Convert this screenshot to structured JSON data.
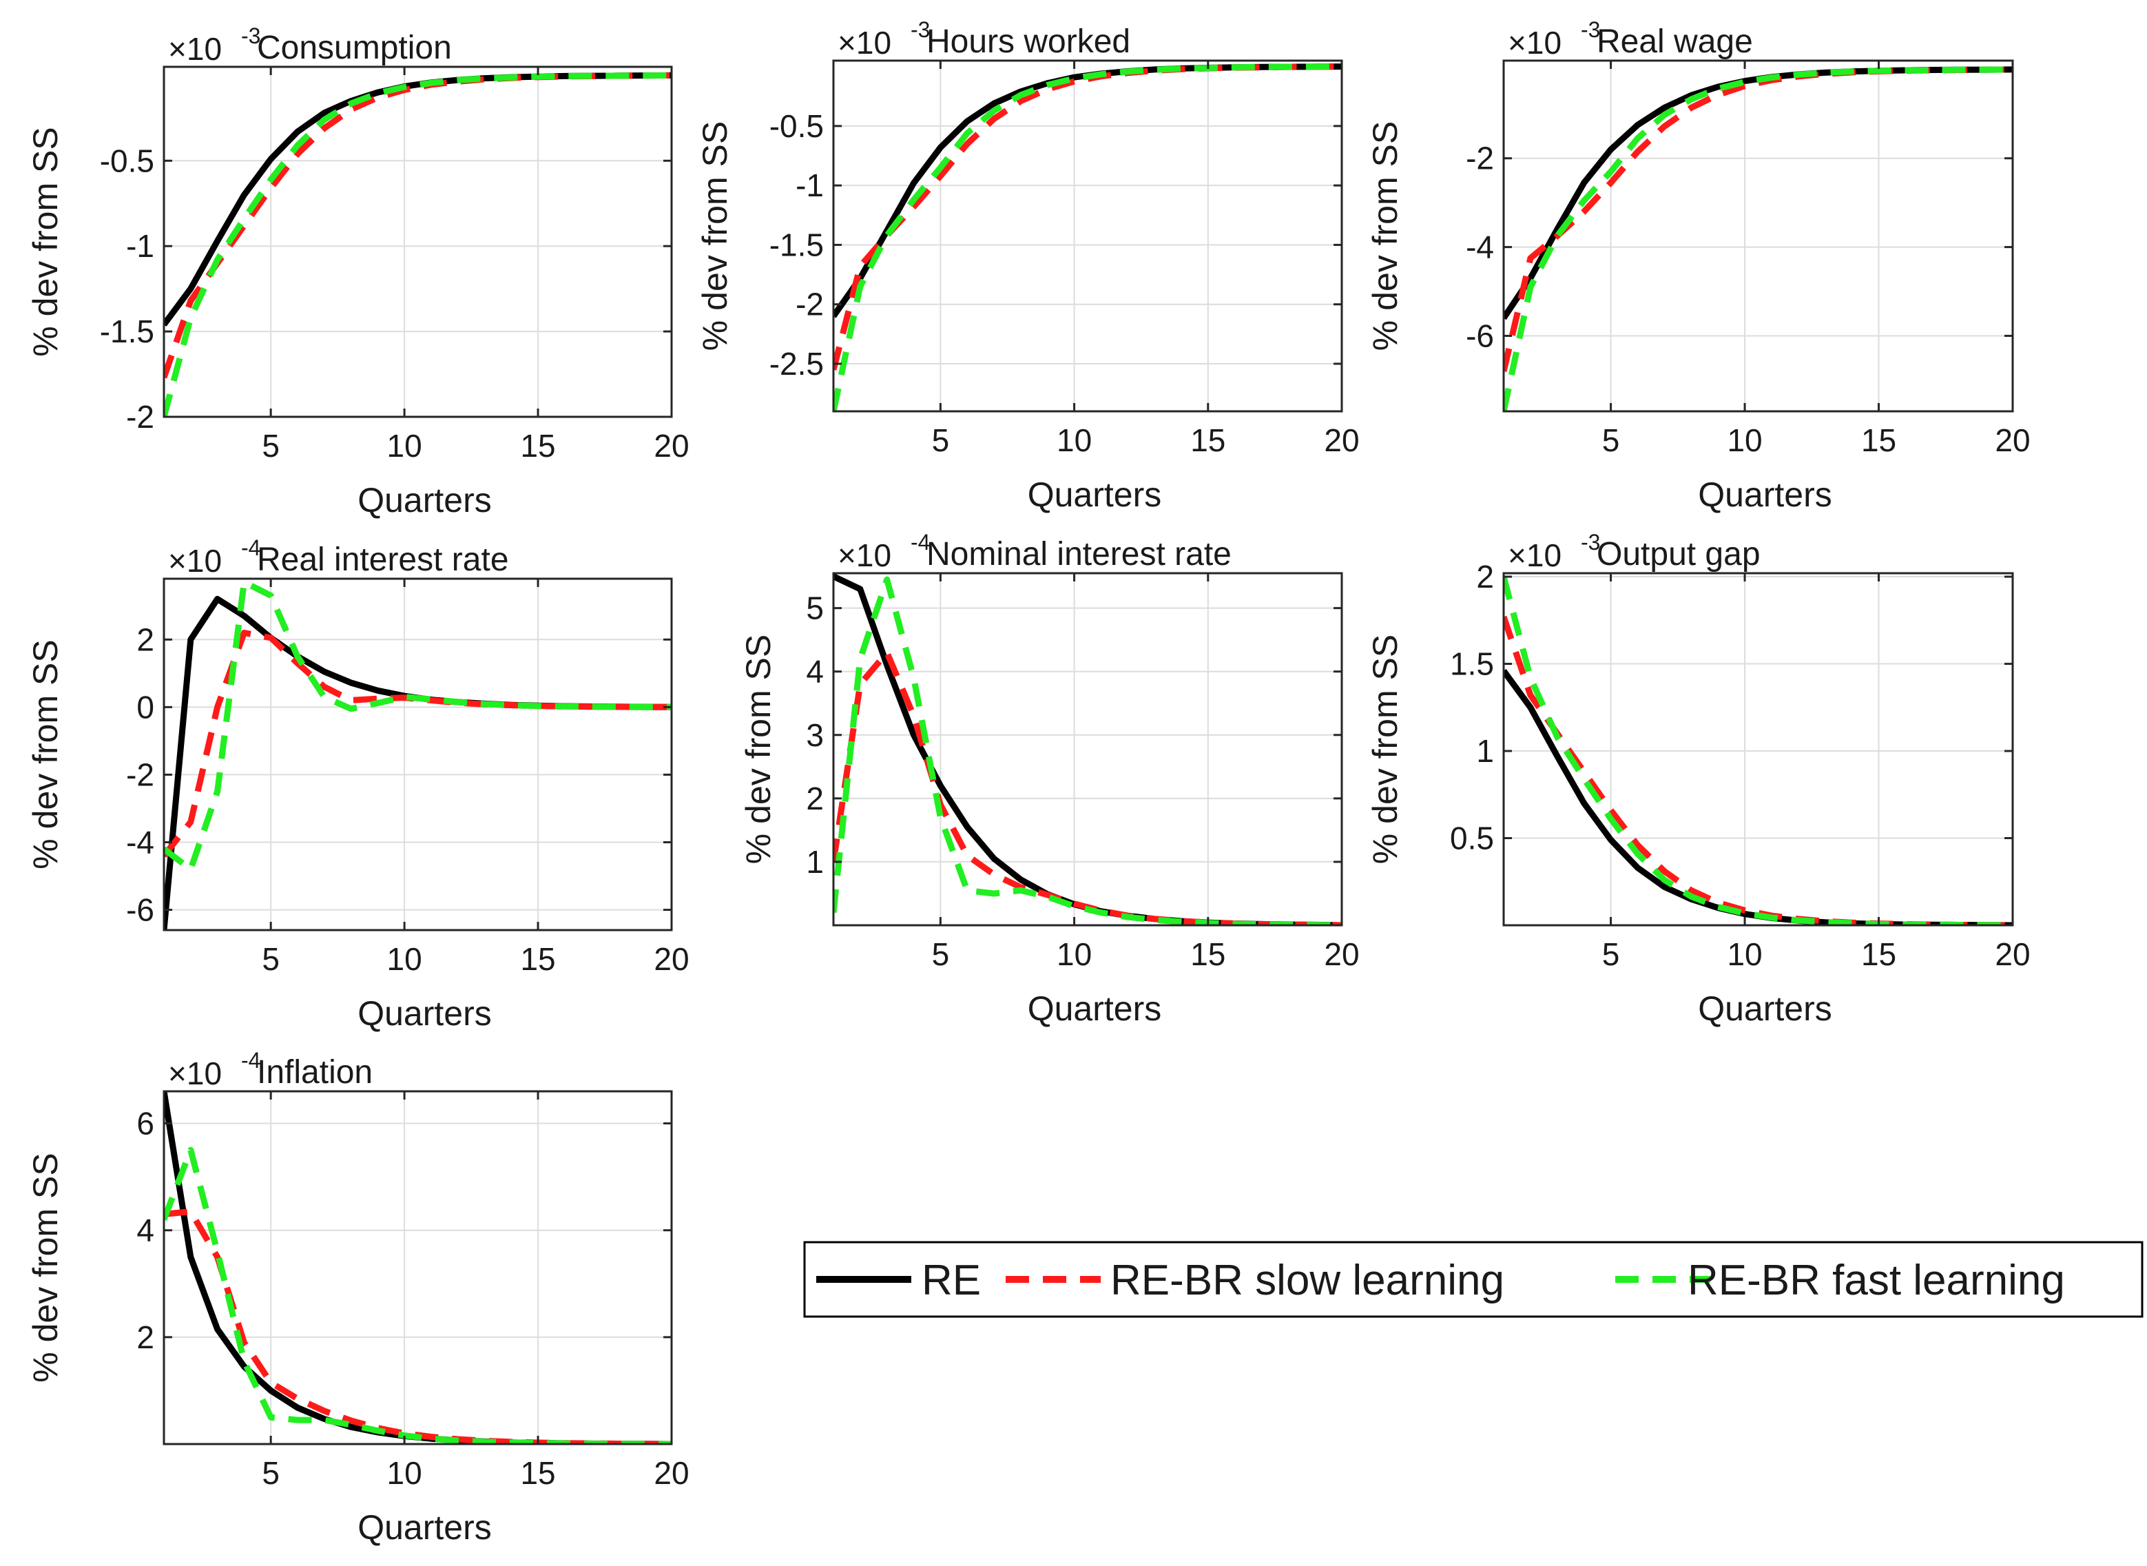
{
  "series_styles": {
    "RE": {
      "color": "#000000",
      "dash": "solid"
    },
    "RE-BR slow learning": {
      "color": "#ff1a1a",
      "dash": "dashed"
    },
    "RE-BR fast learning": {
      "color": "#22ee22",
      "dash": "dashed"
    }
  },
  "legend": {
    "entries": [
      "RE",
      "RE-BR slow learning",
      "RE-BR fast learning"
    ]
  },
  "chart_data": [
    {
      "type": "line",
      "title": "Consumption",
      "scale": "×10",
      "scale_exponent": "-3",
      "xlabel": "Quarters",
      "ylabel": "% dev from SS",
      "xlim": [
        1,
        20
      ],
      "ylim": [
        -2.0,
        0.05
      ],
      "xticks": [
        5,
        10,
        15,
        20
      ],
      "yticks": [
        -2,
        -1.5,
        -1,
        -0.5
      ],
      "ytick_labels": [
        "-2",
        "-1.5",
        "-1",
        "-0.5"
      ],
      "x": [
        1,
        2,
        3,
        4,
        5,
        6,
        7,
        8,
        9,
        10,
        11,
        12,
        13,
        14,
        15,
        16,
        17,
        18,
        19,
        20
      ],
      "series": [
        {
          "name": "RE",
          "values": [
            -1.46,
            -1.25,
            -0.97,
            -0.7,
            -0.49,
            -0.33,
            -0.22,
            -0.15,
            -0.1,
            -0.065,
            -0.042,
            -0.027,
            -0.017,
            -0.011,
            -0.007,
            -0.004,
            -0.003,
            -0.002,
            -0.001,
            0
          ]
        },
        {
          "name": "RE-BR slow learning",
          "values": [
            -1.77,
            -1.32,
            -1.1,
            -0.88,
            -0.66,
            -0.46,
            -0.31,
            -0.2,
            -0.13,
            -0.085,
            -0.055,
            -0.036,
            -0.023,
            -0.015,
            -0.01,
            -0.006,
            -0.004,
            -0.002,
            -0.001,
            0
          ]
        },
        {
          "name": "RE-BR fast learning",
          "values": [
            -2.0,
            -1.42,
            -1.08,
            -0.84,
            -0.61,
            -0.41,
            -0.26,
            -0.165,
            -0.105,
            -0.068,
            -0.044,
            -0.028,
            -0.018,
            -0.012,
            -0.007,
            -0.004,
            -0.003,
            -0.002,
            -0.001,
            0
          ]
        }
      ]
    },
    {
      "type": "line",
      "title": "Hours worked",
      "scale": "×10",
      "scale_exponent": "-3",
      "xlabel": "Quarters",
      "ylabel": "% dev from SS",
      "xlim": [
        1,
        20
      ],
      "ylim": [
        -2.9,
        0.05
      ],
      "xticks": [
        5,
        10,
        15,
        20
      ],
      "yticks": [
        -2.5,
        -2,
        -1.5,
        -1,
        -0.5
      ],
      "ytick_labels": [
        "-2.5",
        "-2",
        "-1.5",
        "-1",
        "-0.5"
      ],
      "x": [
        1,
        2,
        3,
        4,
        5,
        6,
        7,
        8,
        9,
        10,
        11,
        12,
        13,
        14,
        15,
        16,
        17,
        18,
        19,
        20
      ],
      "series": [
        {
          "name": "RE",
          "values": [
            -2.1,
            -1.78,
            -1.38,
            -0.98,
            -0.68,
            -0.46,
            -0.31,
            -0.21,
            -0.14,
            -0.09,
            -0.06,
            -0.04,
            -0.025,
            -0.016,
            -0.01,
            -0.006,
            -0.004,
            -0.002,
            -0.001,
            0
          ]
        },
        {
          "name": "RE-BR slow learning",
          "values": [
            -2.55,
            -1.68,
            -1.42,
            -1.18,
            -0.92,
            -0.65,
            -0.44,
            -0.29,
            -0.19,
            -0.125,
            -0.082,
            -0.053,
            -0.034,
            -0.022,
            -0.014,
            -0.009,
            -0.006,
            -0.003,
            -0.002,
            0
          ]
        },
        {
          "name": "RE-BR fast learning",
          "values": [
            -2.9,
            -1.85,
            -1.42,
            -1.12,
            -0.85,
            -0.56,
            -0.37,
            -0.24,
            -0.155,
            -0.1,
            -0.065,
            -0.042,
            -0.027,
            -0.017,
            -0.011,
            -0.007,
            -0.004,
            -0.002,
            -0.001,
            0
          ]
        }
      ]
    },
    {
      "type": "line",
      "title": "Real wage",
      "scale": "×10",
      "scale_exponent": "-3",
      "xlabel": "Quarters",
      "ylabel": "% dev from SS",
      "xlim": [
        1,
        20
      ],
      "ylim": [
        -7.7,
        0.2
      ],
      "xticks": [
        5,
        10,
        15,
        20
      ],
      "yticks": [
        -6,
        -4,
        -2
      ],
      "ytick_labels": [
        "-6",
        "-4",
        "-2"
      ],
      "x": [
        1,
        2,
        3,
        4,
        5,
        6,
        7,
        8,
        9,
        10,
        11,
        12,
        13,
        14,
        15,
        16,
        17,
        18,
        19,
        20
      ],
      "series": [
        {
          "name": "RE",
          "values": [
            -5.6,
            -4.7,
            -3.6,
            -2.55,
            -1.8,
            -1.25,
            -0.86,
            -0.58,
            -0.39,
            -0.26,
            -0.17,
            -0.11,
            -0.07,
            -0.045,
            -0.028,
            -0.017,
            -0.01,
            -0.006,
            -0.003,
            0
          ]
        },
        {
          "name": "RE-BR slow learning",
          "values": [
            -6.8,
            -4.25,
            -3.75,
            -3.2,
            -2.55,
            -1.85,
            -1.28,
            -0.86,
            -0.57,
            -0.37,
            -0.24,
            -0.155,
            -0.1,
            -0.064,
            -0.04,
            -0.025,
            -0.015,
            -0.009,
            -0.004,
            0
          ]
        },
        {
          "name": "RE-BR fast learning",
          "values": [
            -7.7,
            -4.9,
            -3.75,
            -2.95,
            -2.3,
            -1.55,
            -1.02,
            -0.67,
            -0.43,
            -0.28,
            -0.18,
            -0.115,
            -0.073,
            -0.046,
            -0.029,
            -0.018,
            -0.011,
            -0.006,
            -0.003,
            0
          ]
        }
      ]
    },
    {
      "type": "line",
      "title": "Real interest rate",
      "scale": "×10",
      "scale_exponent": "-4",
      "xlabel": "Quarters",
      "ylabel": "% dev from SS",
      "xlim": [
        1,
        20
      ],
      "ylim": [
        -6.6,
        3.8
      ],
      "xticks": [
        5,
        10,
        15,
        20
      ],
      "yticks": [
        -6,
        -4,
        -2,
        0,
        2
      ],
      "ytick_labels": [
        "-6",
        "-4",
        "-2",
        "0",
        "2"
      ],
      "x": [
        1,
        2,
        3,
        4,
        5,
        6,
        7,
        8,
        9,
        10,
        11,
        12,
        13,
        14,
        15,
        16,
        17,
        18,
        19,
        20
      ],
      "series": [
        {
          "name": "RE",
          "values": [
            -6.6,
            2.0,
            3.2,
            2.7,
            2.05,
            1.5,
            1.05,
            0.72,
            0.49,
            0.33,
            0.22,
            0.15,
            0.1,
            0.065,
            0.042,
            0.027,
            0.017,
            0.011,
            0.006,
            0
          ]
        },
        {
          "name": "RE-BR slow learning",
          "values": [
            -4.4,
            -3.4,
            0.0,
            2.2,
            2.05,
            1.3,
            0.6,
            0.2,
            0.25,
            0.28,
            0.2,
            0.13,
            0.085,
            0.055,
            0.035,
            0.022,
            0.014,
            0.008,
            0.004,
            0
          ]
        },
        {
          "name": "RE-BR fast learning",
          "values": [
            -4.2,
            -4.8,
            -2.5,
            3.7,
            3.3,
            1.5,
            0.3,
            -0.05,
            0.12,
            0.3,
            0.23,
            0.15,
            0.09,
            0.055,
            0.034,
            0.021,
            0.013,
            0.007,
            0.003,
            0
          ]
        }
      ]
    },
    {
      "type": "line",
      "title": "Nominal interest rate",
      "scale": "×10",
      "scale_exponent": "-4",
      "xlabel": "Quarters",
      "ylabel": "% dev from SS",
      "xlim": [
        1,
        20
      ],
      "ylim": [
        0,
        5.55
      ],
      "xticks": [
        5,
        10,
        15,
        20
      ],
      "yticks": [
        1,
        2,
        3,
        4,
        5
      ],
      "ytick_labels": [
        "1",
        "2",
        "3",
        "4",
        "5"
      ],
      "x": [
        1,
        2,
        3,
        4,
        5,
        6,
        7,
        8,
        9,
        10,
        11,
        12,
        13,
        14,
        15,
        16,
        17,
        18,
        19,
        20
      ],
      "series": [
        {
          "name": "RE",
          "values": [
            5.5,
            5.3,
            4.1,
            3.0,
            2.2,
            1.55,
            1.05,
            0.72,
            0.49,
            0.33,
            0.22,
            0.15,
            0.1,
            0.065,
            0.042,
            0.027,
            0.017,
            0.011,
            0.006,
            0
          ]
        },
        {
          "name": "RE-BR slow learning",
          "values": [
            1.0,
            3.8,
            4.3,
            3.3,
            1.9,
            1.1,
            0.8,
            0.6,
            0.48,
            0.34,
            0.23,
            0.15,
            0.1,
            0.065,
            0.042,
            0.027,
            0.017,
            0.011,
            0.006,
            0
          ]
        },
        {
          "name": "RE-BR fast learning",
          "values": [
            0.2,
            4.2,
            5.45,
            3.9,
            1.7,
            0.55,
            0.5,
            0.55,
            0.45,
            0.3,
            0.2,
            0.13,
            0.085,
            0.055,
            0.035,
            0.022,
            0.014,
            0.008,
            0.004,
            0
          ]
        }
      ]
    },
    {
      "type": "line",
      "title": "Output gap",
      "scale": "×10",
      "scale_exponent": "-3",
      "xlabel": "Quarters",
      "ylabel": "% dev from SS",
      "xlim": [
        1,
        20
      ],
      "ylim": [
        0,
        2.02
      ],
      "xticks": [
        5,
        10,
        15,
        20
      ],
      "yticks": [
        0.5,
        1,
        1.5,
        2
      ],
      "ytick_labels": [
        "0.5",
        "1",
        "1.5",
        "2"
      ],
      "x": [
        1,
        2,
        3,
        4,
        5,
        6,
        7,
        8,
        9,
        10,
        11,
        12,
        13,
        14,
        15,
        16,
        17,
        18,
        19,
        20
      ],
      "series": [
        {
          "name": "RE",
          "values": [
            1.46,
            1.25,
            0.97,
            0.7,
            0.49,
            0.33,
            0.22,
            0.15,
            0.1,
            0.065,
            0.042,
            0.027,
            0.017,
            0.011,
            0.007,
            0.004,
            0.003,
            0.002,
            0.001,
            0
          ]
        },
        {
          "name": "RE-BR slow learning",
          "values": [
            1.77,
            1.32,
            1.1,
            0.88,
            0.66,
            0.46,
            0.31,
            0.2,
            0.13,
            0.085,
            0.055,
            0.036,
            0.023,
            0.015,
            0.01,
            0.006,
            0.004,
            0.002,
            0.001,
            0
          ]
        },
        {
          "name": "RE-BR fast learning",
          "values": [
            2.0,
            1.42,
            1.08,
            0.84,
            0.61,
            0.41,
            0.26,
            0.165,
            0.105,
            0.068,
            0.044,
            0.028,
            0.018,
            0.012,
            0.007,
            0.004,
            0.003,
            0.002,
            0.001,
            0
          ]
        }
      ]
    },
    {
      "type": "line",
      "title": "Inflation",
      "scale": "×10",
      "scale_exponent": "-4",
      "xlabel": "Quarters",
      "ylabel": "% dev from SS",
      "xlim": [
        1,
        20
      ],
      "ylim": [
        0,
        6.6
      ],
      "xticks": [
        5,
        10,
        15,
        20
      ],
      "yticks": [
        2,
        4,
        6
      ],
      "ytick_labels": [
        "2",
        "4",
        "6"
      ],
      "x": [
        1,
        2,
        3,
        4,
        5,
        6,
        7,
        8,
        9,
        10,
        11,
        12,
        13,
        14,
        15,
        16,
        17,
        18,
        19,
        20
      ],
      "series": [
        {
          "name": "RE",
          "values": [
            6.6,
            3.5,
            2.15,
            1.45,
            1.0,
            0.68,
            0.47,
            0.32,
            0.22,
            0.15,
            0.1,
            0.068,
            0.046,
            0.03,
            0.02,
            0.013,
            0.008,
            0.005,
            0.003,
            0
          ]
        },
        {
          "name": "RE-BR slow learning",
          "values": [
            4.3,
            4.35,
            3.5,
            1.9,
            1.15,
            0.85,
            0.62,
            0.44,
            0.3,
            0.2,
            0.135,
            0.09,
            0.06,
            0.04,
            0.026,
            0.017,
            0.011,
            0.007,
            0.004,
            0
          ]
        },
        {
          "name": "RE-BR fast learning",
          "values": [
            4.2,
            5.5,
            3.6,
            1.55,
            0.5,
            0.45,
            0.45,
            0.36,
            0.25,
            0.16,
            0.1,
            0.065,
            0.043,
            0.028,
            0.018,
            0.011,
            0.007,
            0.004,
            0.002,
            0
          ]
        }
      ]
    }
  ]
}
